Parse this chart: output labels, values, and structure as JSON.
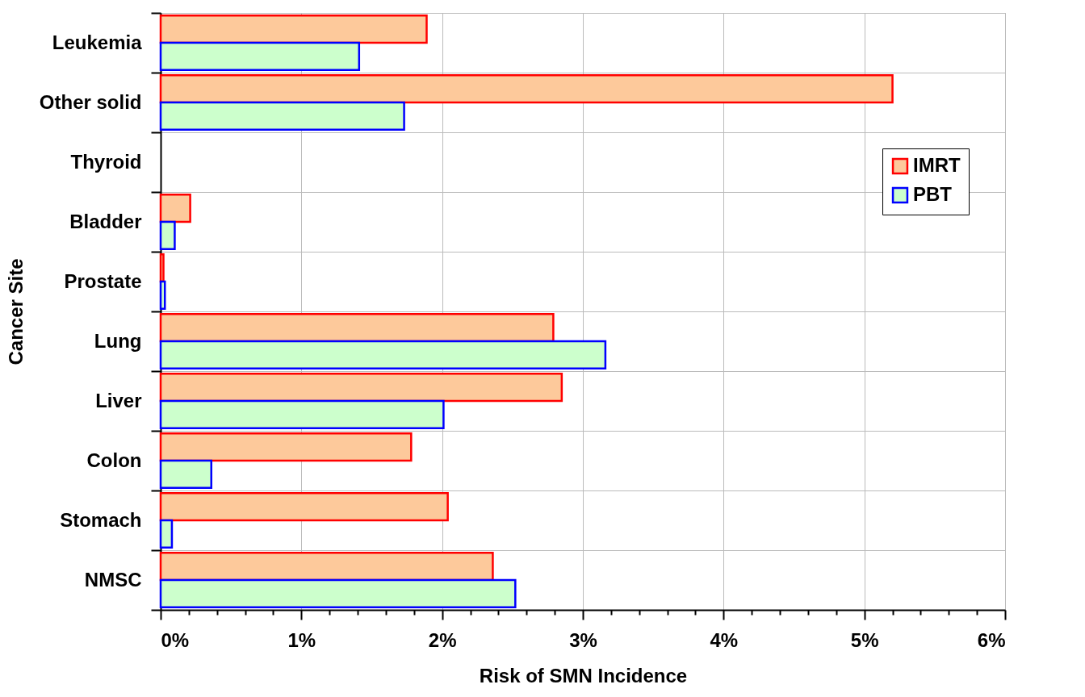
{
  "chart_data": {
    "type": "bar",
    "orientation": "horizontal",
    "xlabel": "Risk of SMN Incidence",
    "ylabel": "Cancer Site",
    "categories": [
      "Leukemia",
      "Other solid",
      "Thyroid",
      "Bladder",
      "Prostate",
      "Lung",
      "Liver",
      "Colon",
      "Stomach",
      "NMSC"
    ],
    "series": [
      {
        "name": "IMRT",
        "color": "#fdc99b",
        "values": [
          1.89,
          5.2,
          0,
          0.21,
          0.02,
          2.79,
          2.85,
          1.78,
          2.04,
          2.36
        ]
      },
      {
        "name": "PBT",
        "color": "#ccffcc",
        "values": [
          1.41,
          1.73,
          0,
          0.1,
          0.03,
          3.16,
          2.01,
          0.36,
          0.08,
          2.52
        ]
      }
    ],
    "xlim": [
      0,
      6
    ],
    "xticks": [
      {
        "value": 0,
        "label": "0%"
      },
      {
        "value": 0.2,
        "label": null
      },
      {
        "value": 0.4,
        "label": null
      },
      {
        "value": 0.6,
        "label": null
      },
      {
        "value": 0.8,
        "label": null
      },
      {
        "value": 1,
        "label": "1%"
      },
      {
        "value": 1.2,
        "label": null
      },
      {
        "value": 1.4,
        "label": null
      },
      {
        "value": 1.6,
        "label": null
      },
      {
        "value": 1.8,
        "label": null
      },
      {
        "value": 2,
        "label": "2%"
      },
      {
        "value": 2.2,
        "label": null
      },
      {
        "value": 2.4,
        "label": null
      },
      {
        "value": 2.6,
        "label": null
      },
      {
        "value": 2.8,
        "label": null
      },
      {
        "value": 3,
        "label": "3%"
      },
      {
        "value": 3.2,
        "label": null
      },
      {
        "value": 3.4,
        "label": null
      },
      {
        "value": 3.6,
        "label": null
      },
      {
        "value": 3.8,
        "label": null
      },
      {
        "value": 4,
        "label": "4%"
      },
      {
        "value": 4.2,
        "label": null
      },
      {
        "value": 4.4,
        "label": null
      },
      {
        "value": 4.6,
        "label": null
      },
      {
        "value": 4.8,
        "label": null
      },
      {
        "value": 5,
        "label": "5%"
      },
      {
        "value": 5.2,
        "label": null
      },
      {
        "value": 5.4,
        "label": null
      },
      {
        "value": 5.6,
        "label": null
      },
      {
        "value": 5.8,
        "label": null
      },
      {
        "value": 6,
        "label": "6%"
      }
    ],
    "grid": true,
    "legend": "top right"
  }
}
